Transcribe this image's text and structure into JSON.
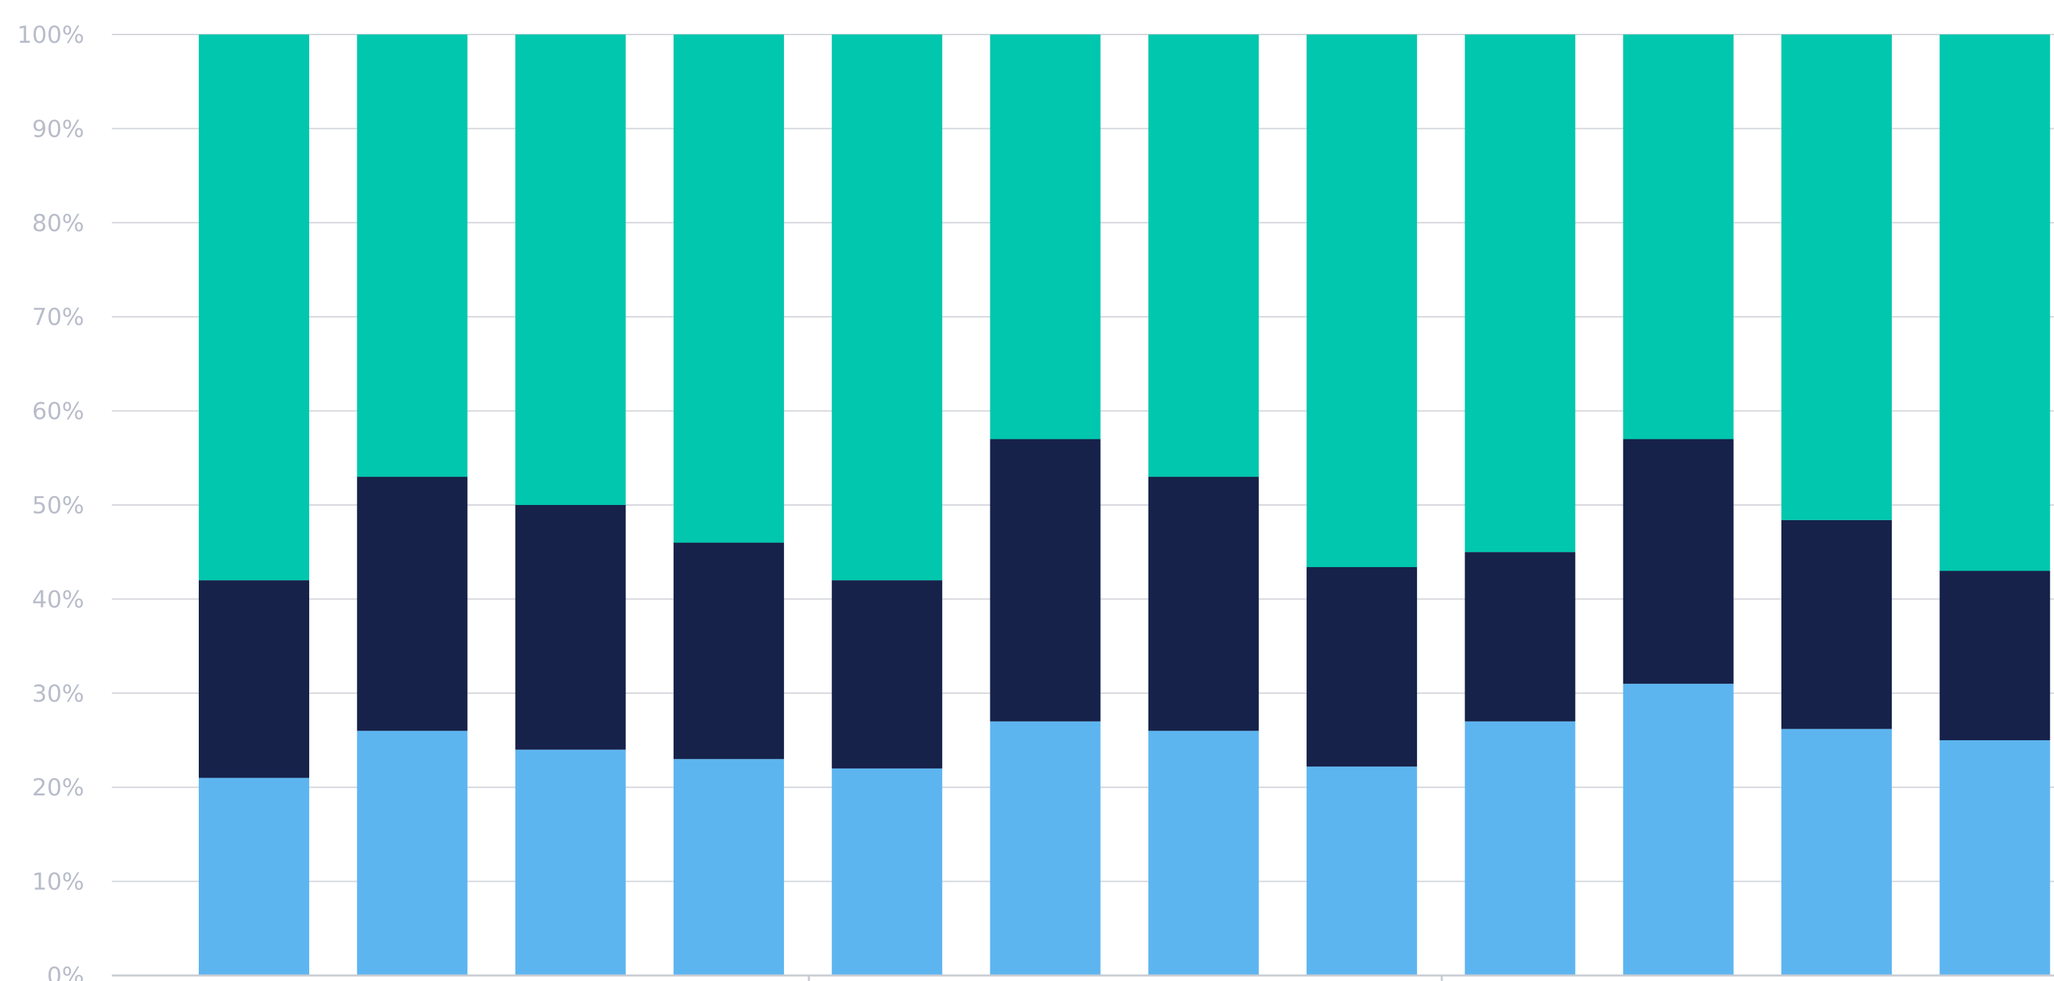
{
  "chart_data": {
    "type": "bar",
    "stacked": true,
    "categories": [
      "",
      "",
      "",
      "",
      "",
      "",
      "",
      "",
      "",
      "",
      "",
      ""
    ],
    "series": [
      {
        "color": "#5db5f0",
        "values": [
          21,
          26,
          24,
          23,
          22,
          27,
          26,
          22.2,
          27,
          31,
          26.2,
          25
        ]
      },
      {
        "color": "#16224a",
        "values": [
          21,
          27,
          26,
          23,
          20,
          30,
          27,
          21.2,
          18,
          26,
          22.2,
          18
        ]
      },
      {
        "color": "#00c7ae",
        "values": [
          58,
          47,
          50,
          54,
          58,
          43,
          47,
          56.6,
          55,
          43,
          51.6,
          57
        ]
      }
    ],
    "ylim": [
      0,
      100
    ],
    "yticks": [
      "0%",
      "10%",
      "20%",
      "30%",
      "40%",
      "50%",
      "60%",
      "70%",
      "80%",
      "90%",
      "100%"
    ],
    "grid": true,
    "legend": "none",
    "title": "",
    "xlabel": "",
    "ylabel": ""
  }
}
